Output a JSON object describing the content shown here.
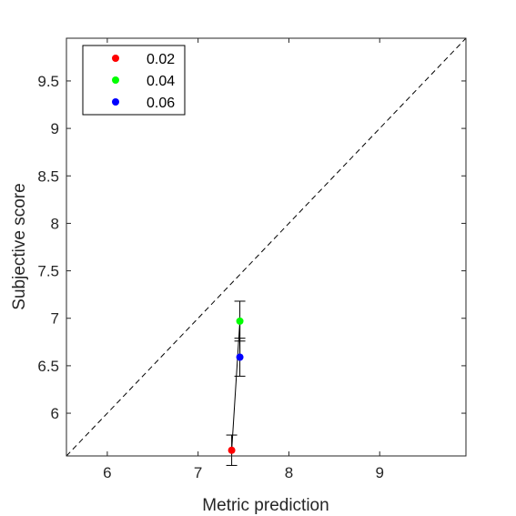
{
  "chart_data": {
    "type": "scatter",
    "title": "",
    "xlabel": "Metric prediction",
    "ylabel": "Subjective score",
    "xlim": [
      5.55,
      9.95
    ],
    "ylim": [
      5.55,
      9.95
    ],
    "xticks": [
      6,
      7,
      8,
      9
    ],
    "yticks": [
      6,
      6.5,
      7,
      7.5,
      8,
      8.5,
      9,
      9.5
    ],
    "x_tick_labels": [
      "6",
      "7",
      "8",
      "9"
    ],
    "y_tick_labels": [
      "6",
      "6.5",
      "7",
      "7.5",
      "8",
      "8.5",
      "9",
      "9.5"
    ],
    "grid": false,
    "legend_placement": "top-left",
    "reference_line": {
      "style": "dashed",
      "from": [
        5.55,
        5.55
      ],
      "to": [
        9.95,
        9.95
      ],
      "color": "#000000"
    },
    "connecting_line": {
      "color": "#000000"
    },
    "series": [
      {
        "name": "0.02",
        "color": "#ff0000",
        "x": 7.37,
        "y": 5.61,
        "err_low": 5.45,
        "err_high": 5.77
      },
      {
        "name": "0.04",
        "color": "#00ff00",
        "x": 7.46,
        "y": 6.97,
        "err_low": 6.76,
        "err_high": 7.18
      },
      {
        "name": "0.06",
        "color": "#0000ff",
        "x": 7.46,
        "y": 6.59,
        "err_low": 6.39,
        "err_high": 6.79
      }
    ]
  }
}
